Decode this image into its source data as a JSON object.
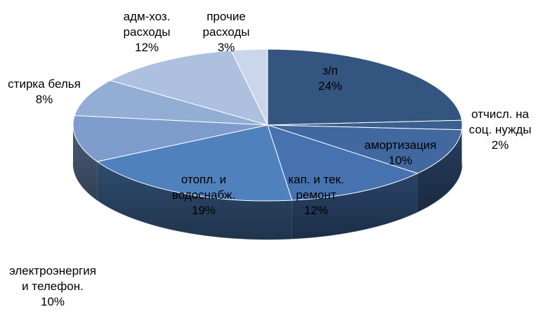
{
  "chart_data": {
    "type": "pie",
    "style": "3d",
    "slices": [
      {
        "label": "з/п",
        "label_lines": [
          "з/п"
        ],
        "value": 24,
        "value_text": "24%",
        "color": "#34557F"
      },
      {
        "label": "отчисл. на соц. нужды",
        "label_lines": [
          "отчисл. на",
          "соц. нужды"
        ],
        "value": 2,
        "value_text": "2%",
        "color": "#3B5F8F"
      },
      {
        "label": "амортизация",
        "label_lines": [
          "амортизация"
        ],
        "value": 10,
        "value_text": "10%",
        "color": "#4169A0"
      },
      {
        "label": "кап. и тек. ремонт",
        "label_lines": [
          "кап. и тек.",
          "ремонт"
        ],
        "value": 12,
        "value_text": "12%",
        "color": "#4673B0"
      },
      {
        "label": "отопл. и водоснабж.",
        "label_lines": [
          "отопл. и",
          "водоснабж."
        ],
        "value": 19,
        "value_text": "19%",
        "color": "#4F81BD"
      },
      {
        "label": "электроэнергия и телефон.",
        "label_lines": [
          "электроэнергия",
          "и телефон."
        ],
        "value": 10,
        "value_text": "10%",
        "color": "#7D9CCB"
      },
      {
        "label": "стирка белья",
        "label_lines": [
          "стирка белья"
        ],
        "value": 8,
        "value_text": "8%",
        "color": "#93AED5"
      },
      {
        "label": "адм-хоз. расходы",
        "label_lines": [
          "адм-хоз.",
          "расходы"
        ],
        "value": 12,
        "value_text": "12%",
        "color": "#ADC0DF"
      },
      {
        "label": "прочие расходы",
        "label_lines": [
          "прочие",
          "расходы"
        ],
        "value": 3,
        "value_text": "3%",
        "color": "#CAD6EA"
      }
    ]
  }
}
